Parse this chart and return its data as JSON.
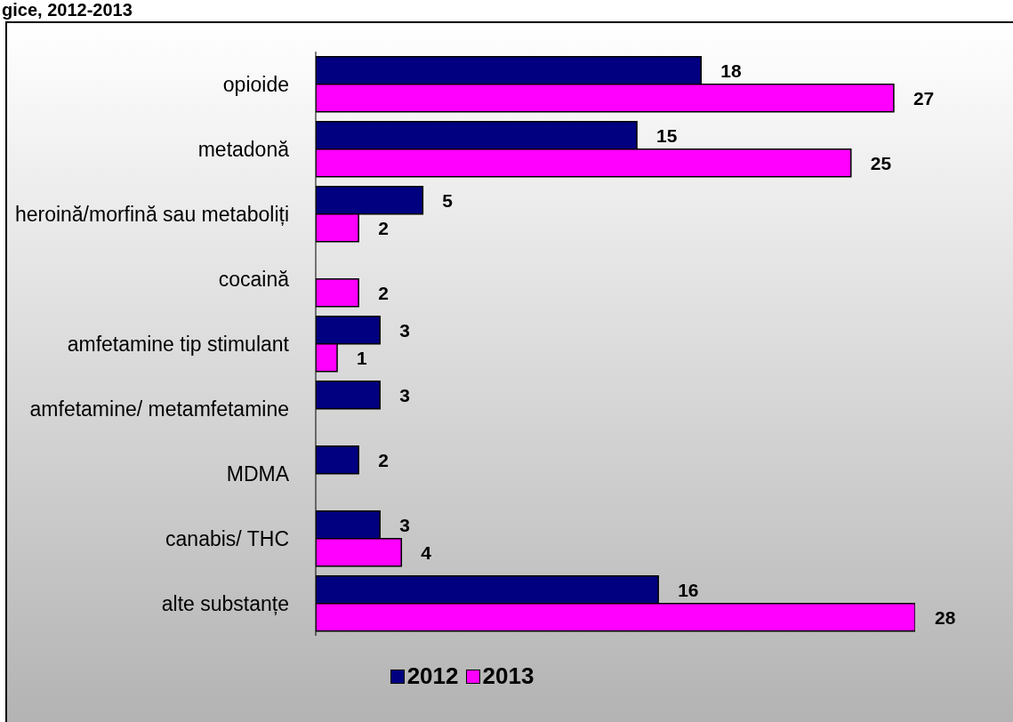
{
  "chart_data": {
    "type": "bar",
    "orientation": "horizontal",
    "title": "gice, 2012-2013",
    "categories": [
      "opioide",
      "metadonă",
      "heroină/morfină sau metaboliți",
      "cocaină",
      "amfetamine tip stimulant",
      "amfetamine/ metamfetamine",
      "MDMA",
      "canabis/ THC",
      "alte substanțe"
    ],
    "series": [
      {
        "name": "2012",
        "color": "#000080",
        "values": [
          18,
          15,
          5,
          null,
          3,
          3,
          2,
          3,
          16
        ]
      },
      {
        "name": "2013",
        "color": "#ff00ff",
        "values": [
          27,
          25,
          2,
          2,
          1,
          null,
          null,
          4,
          28
        ]
      }
    ],
    "data_labels": true,
    "legend": "bottom",
    "grid": false
  }
}
